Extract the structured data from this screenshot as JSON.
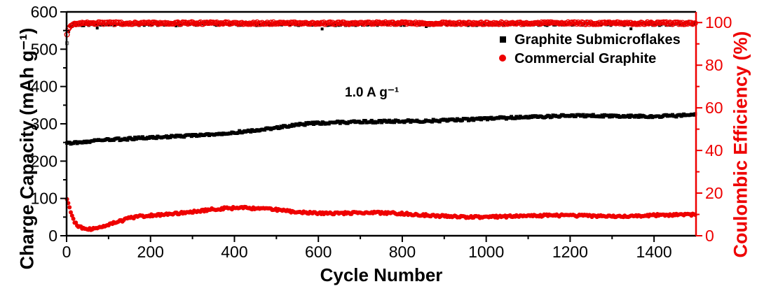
{
  "figure": {
    "background": "#ffffff",
    "annotation_current_density": "1.0 A g⁻¹",
    "legend": [
      {
        "label": "Graphite Submicroflakes",
        "marker": "filled-square",
        "color": "#000000"
      },
      {
        "label": "Commercial Graphite",
        "marker": "filled-circle",
        "color": "#ee0000"
      }
    ],
    "colors": {
      "black": "#000000",
      "red": "#ee0000"
    }
  },
  "chart_data": {
    "type": "scatter",
    "title": "",
    "xlabel": "Cycle Number",
    "ylabel_left": "Charge Capacity (mAh g⁻¹)",
    "ylabel_right": "Coulombic Efficiency (%)",
    "x_axis": {
      "range": [
        0,
        1500
      ],
      "major_ticks": [
        0,
        200,
        400,
        600,
        800,
        1000,
        1200,
        1400
      ],
      "minor_ticks": [
        100,
        300,
        500,
        700,
        900,
        1100,
        1300
      ]
    },
    "y_left_axis": {
      "range": [
        0,
        600
      ],
      "major_ticks": [
        0,
        100,
        200,
        300,
        400,
        500,
        600
      ],
      "minor_ticks": [
        50,
        150,
        250,
        350,
        450,
        550
      ],
      "color": "#000000"
    },
    "y_right_axis": {
      "range_labeled": [
        0,
        100
      ],
      "range_plotted": [
        0,
        105
      ],
      "major_ticks": [
        0,
        20,
        40,
        60,
        80,
        100
      ],
      "minor_ticks": [
        10,
        30,
        50,
        70,
        90
      ],
      "color": "#ee0000"
    },
    "grid": false,
    "legend_position": "upper-right-inside",
    "series": [
      {
        "name": "Graphite Submicroflakes — Charge Capacity",
        "axis": "left",
        "marker": "filled-square",
        "color": "#000000",
        "units": "mAh g⁻¹",
        "keypoints": [
          [
            1,
            247
          ],
          [
            50,
            251
          ],
          [
            100,
            255
          ],
          [
            150,
            258
          ],
          [
            200,
            262
          ],
          [
            250,
            266
          ],
          [
            300,
            270
          ],
          [
            350,
            274
          ],
          [
            400,
            279
          ],
          [
            450,
            284
          ],
          [
            500,
            290
          ],
          [
            540,
            295
          ],
          [
            580,
            299
          ],
          [
            650,
            302
          ],
          [
            700,
            304
          ],
          [
            750,
            306
          ],
          [
            800,
            308
          ],
          [
            900,
            311
          ],
          [
            1000,
            314
          ],
          [
            1100,
            316
          ],
          [
            1150,
            318
          ],
          [
            1200,
            321
          ],
          [
            1300,
            322
          ],
          [
            1400,
            322
          ],
          [
            1450,
            323
          ],
          [
            1500,
            325
          ]
        ],
        "noise": 3.0,
        "wobble": {
          "period": 80,
          "amplitude": 2.0
        },
        "step": 3,
        "size": 5
      },
      {
        "name": "Commercial Graphite — Charge Capacity",
        "axis": "left",
        "marker": "filled-circle",
        "color": "#ee0000",
        "units": "mAh g⁻¹",
        "keypoints": [
          [
            1,
            100
          ],
          [
            5,
            85
          ],
          [
            12,
            55
          ],
          [
            20,
            34
          ],
          [
            30,
            22
          ],
          [
            45,
            16
          ],
          [
            60,
            15
          ],
          [
            75,
            18
          ],
          [
            90,
            24
          ],
          [
            110,
            31
          ],
          [
            130,
            38
          ],
          [
            150,
            46
          ],
          [
            175,
            52
          ],
          [
            200,
            56
          ],
          [
            230,
            59
          ],
          [
            260,
            62
          ],
          [
            300,
            66
          ],
          [
            340,
            70
          ],
          [
            380,
            72
          ],
          [
            420,
            72
          ],
          [
            460,
            70
          ],
          [
            500,
            69
          ],
          [
            530,
            66
          ],
          [
            560,
            64
          ],
          [
            600,
            63
          ],
          [
            650,
            62
          ],
          [
            700,
            61
          ],
          [
            750,
            59
          ],
          [
            800,
            57
          ],
          [
            850,
            55
          ],
          [
            900,
            54
          ],
          [
            950,
            53
          ],
          [
            1000,
            52
          ],
          [
            1050,
            51
          ],
          [
            1100,
            51
          ],
          [
            1150,
            52
          ],
          [
            1200,
            54
          ],
          [
            1250,
            55
          ],
          [
            1300,
            55
          ],
          [
            1350,
            54
          ],
          [
            1400,
            54
          ],
          [
            1450,
            54
          ],
          [
            1500,
            54
          ]
        ],
        "noise": 3.0,
        "wobble": {
          "period": 55,
          "amplitude": 2.5
        },
        "step": 3,
        "size": 3.0
      },
      {
        "name": "Graphite Submicroflakes — Coulombic Efficiency",
        "axis": "right",
        "marker": "filled-square",
        "color": "#000000",
        "units": "%",
        "keypoints": [
          [
            1,
            91
          ],
          [
            3,
            96.8
          ],
          [
            8,
            98.6
          ],
          [
            30,
            99.2
          ],
          [
            1500,
            99.3
          ]
        ],
        "first_cycle_efficiency_pct": 91,
        "open_first_marker": true,
        "noise": 0.7,
        "dip": {
          "probability": 0.025,
          "amount": 1.2
        },
        "step": 4,
        "size": 4
      },
      {
        "name": "Commercial Graphite — Coulombic Efficiency",
        "axis": "right",
        "marker": "open-circle",
        "color": "#ee0000",
        "units": "%",
        "keypoints": [
          [
            1,
            94.5
          ],
          [
            4,
            97
          ],
          [
            12,
            98.8
          ],
          [
            40,
            99.7
          ],
          [
            1500,
            99.7
          ]
        ],
        "noise": 0.5,
        "step": 3,
        "size": 3.4
      }
    ]
  }
}
